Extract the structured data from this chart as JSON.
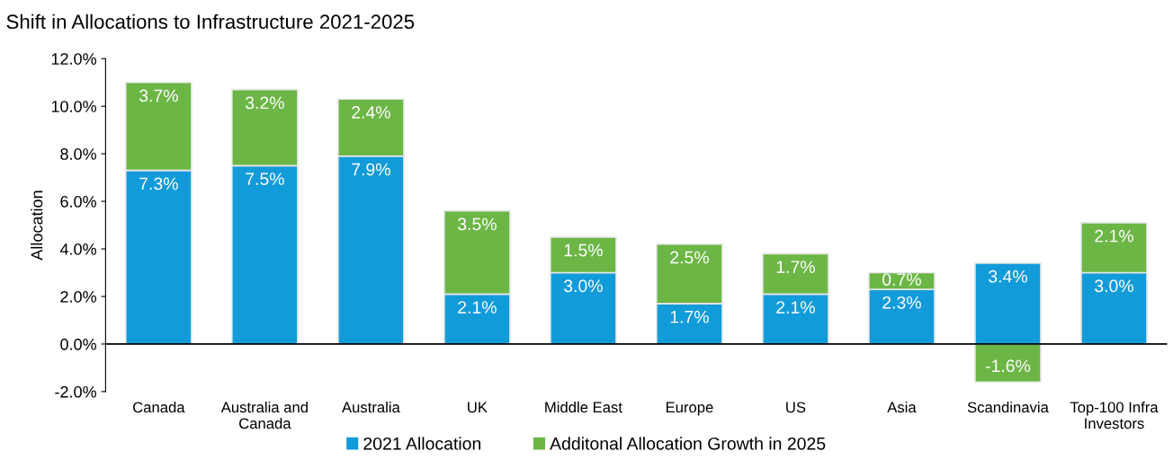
{
  "chart_data": {
    "type": "bar",
    "title": "Shift in Allocations to Infrastructure 2021-2025",
    "ylabel": "Allocation",
    "categories": [
      "Canada",
      "Australia and\nCanada",
      "Australia",
      "UK",
      "Middle East",
      "Europe",
      "US",
      "Asia",
      "Scandinavia",
      "Top-100 Infra\nInvestors"
    ],
    "stacked": true,
    "series": [
      {
        "name": "2021 Allocation",
        "color": "#129bd9",
        "values": [
          7.3,
          7.5,
          7.9,
          2.1,
          3.0,
          1.7,
          2.1,
          2.3,
          3.4,
          3.0
        ],
        "value_labels": [
          "7.3%",
          "7.5%",
          "7.9%",
          "2.1%",
          "3.0%",
          "1.7%",
          "2.1%",
          "2.3%",
          "3.4%",
          "3.0%"
        ]
      },
      {
        "name": "Additonal Allocation Growth in 2025",
        "color": "#6cb646",
        "values": [
          3.7,
          3.2,
          2.4,
          3.5,
          1.5,
          2.5,
          1.7,
          0.7,
          -1.6,
          2.1
        ],
        "value_labels": [
          "3.7%",
          "3.2%",
          "2.4%",
          "3.5%",
          "1.5%",
          "2.5%",
          "1.7%",
          "0.7%",
          "-1.6%",
          "2.1%"
        ]
      }
    ],
    "ylim": [
      -2,
      12
    ],
    "yticks": [
      {
        "value": -2,
        "label": "-2.0%"
      },
      {
        "value": 0,
        "label": "0.0%"
      },
      {
        "value": 2,
        "label": "2.0%"
      },
      {
        "value": 4,
        "label": "4.0%"
      },
      {
        "value": 6,
        "label": "6.0%"
      },
      {
        "value": 8,
        "label": "8.0%"
      },
      {
        "value": 10,
        "label": "10.0%"
      },
      {
        "value": 12,
        "label": "12.0%"
      }
    ],
    "ref_lines": [
      {
        "axis": "y",
        "value": 0,
        "color": "#000000",
        "line_style": "solid"
      }
    ],
    "grid": false,
    "legend": "bottom"
  }
}
